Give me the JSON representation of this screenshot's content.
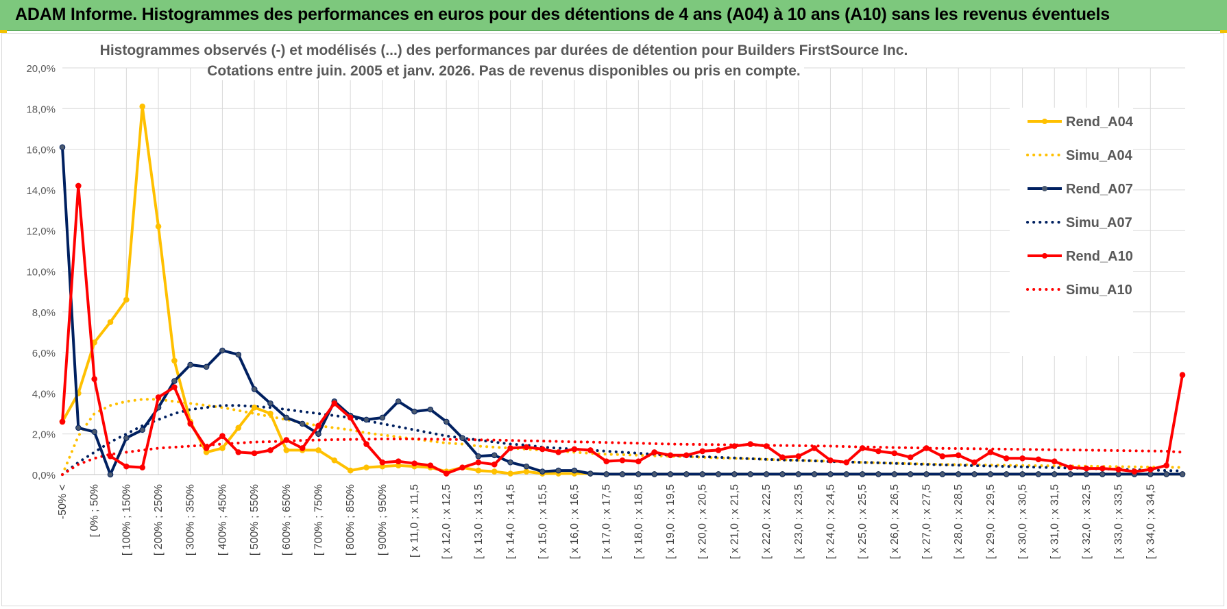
{
  "banner_title": "ADAM Informe. Histogrammes des performances en euros pour des détentions de 4 ans (A04) à 10 ans (A10) sans les revenus éventuels",
  "colors": {
    "banner_bg": "#7dc87d",
    "a04": "#ffc000",
    "a07": "#002060",
    "a10": "#ff0000",
    "grid": "#d9d9d9"
  },
  "chart_data": {
    "type": "line",
    "title_line1": "Histogrammes observés (-) et modélisés (...) des performances par durées de détention pour Builders FirstSource Inc.",
    "title_line2": "Cotations entre juin. 2005 et janv. 2026. Pas de revenus disponibles ou pris en compte.",
    "ylim": [
      0,
      20
    ],
    "yticks": [
      "0,0%",
      "2,0%",
      "4,0%",
      "6,0%",
      "8,0%",
      "10,0%",
      "12,0%",
      "14,0%",
      "16,0%",
      "18,0%",
      "20,0%"
    ],
    "grid": true,
    "legend_position": "right",
    "x_labels": [
      "-50% <",
      "[ 0% ; 50%",
      "[ 100% ; 150%",
      "[ 200% ; 250%",
      "[ 300% ; 350%",
      "[ 400% ; 450%",
      "[ 500% ; 550%",
      "[ 600% ; 650%",
      "[ 700% ; 750%",
      "[ 800% ; 850%",
      "[ 900% ; 950%",
      "[ x 11,0 ; x 11,5",
      "[ x 12,0 ; x 12,5",
      "[ x 13,0 ; x 13,5",
      "[ x 14,0 ; x 14,5",
      "[ x 15,0 ; x 15,5",
      "[ x 16,0 ; x 16,5",
      "[ x 17,0 ; x 17,5",
      "[ x 18,0 ; x 18,5",
      "[ x 19,0 ; x 19,5",
      "[ x 20,0 ; x 20,5",
      "[ x 21,0 ; x 21,5",
      "[ x 22,0 ; x 22,5",
      "[ x 23,0 ; x 23,5",
      "[ x 24,0 ; x 24,5",
      "[ x 25,0 ; x 25,5",
      "[ x 26,0 ; x 26,5",
      "[ x 27,0 ; x 27,5",
      "[ x 28,0 ; x 28,5",
      "[ x 29,0 ; x 29,5",
      "[ x 30,0 ; x 30,5",
      "[ x 31,0 ; x 31,5",
      "[ x 32,0 ; x 32,5",
      "[ x 33,0 ; x 33,5",
      "[ x 34,0 ; x 34,5"
    ],
    "n_points": 71,
    "series": [
      {
        "name": "Rend_A04",
        "style": "solid",
        "color": "#ffc000",
        "values": [
          2.6,
          4.0,
          6.5,
          7.5,
          8.6,
          18.1,
          12.2,
          5.6,
          2.6,
          1.1,
          1.3,
          2.3,
          3.3,
          3.0,
          1.2,
          1.2,
          1.2,
          0.7,
          0.2,
          0.35,
          0.4,
          0.45,
          0.4,
          0.35,
          0.15,
          0.35,
          0.2,
          0.15,
          0.05,
          0.15,
          0.05,
          0.05,
          0.05,
          0.05,
          0.02,
          0.02,
          0.02,
          0.02,
          0.02,
          0.02,
          0.02,
          0.02,
          0.02,
          0.02,
          0.02,
          0.02,
          0.02,
          0.02,
          0.02,
          0.02,
          0.02,
          0.02,
          0.02,
          0.02,
          0.02,
          0.02,
          0.02,
          0.02,
          0.02,
          0.02,
          0.02,
          0.02,
          0.02,
          0.02,
          0.02,
          0.02,
          0.02,
          0.02,
          0.02,
          0.02,
          0.02
        ]
      },
      {
        "name": "Simu_A04",
        "style": "dotted",
        "color": "#ffc000",
        "values": [
          0.0,
          1.9,
          3.0,
          3.4,
          3.6,
          3.7,
          3.7,
          3.6,
          3.5,
          3.4,
          3.3,
          3.15,
          3.0,
          2.85,
          2.7,
          2.55,
          2.4,
          2.3,
          2.2,
          2.05,
          1.95,
          1.85,
          1.75,
          1.65,
          1.55,
          1.5,
          1.4,
          1.35,
          1.3,
          1.25,
          1.2,
          1.15,
          1.1,
          1.05,
          1.0,
          0.98,
          0.95,
          0.92,
          0.9,
          0.88,
          0.85,
          0.82,
          0.8,
          0.78,
          0.75,
          0.73,
          0.7,
          0.68,
          0.65,
          0.63,
          0.6,
          0.58,
          0.56,
          0.54,
          0.52,
          0.5,
          0.49,
          0.48,
          0.47,
          0.46,
          0.45,
          0.44,
          0.43,
          0.42,
          0.41,
          0.4,
          0.39,
          0.38,
          0.37,
          0.36,
          0.35
        ]
      },
      {
        "name": "Rend_A07",
        "style": "solid",
        "color": "#002060",
        "values": [
          16.1,
          2.3,
          2.1,
          0.0,
          1.8,
          2.2,
          3.3,
          4.6,
          5.4,
          5.3,
          6.1,
          5.9,
          4.2,
          3.5,
          2.8,
          2.5,
          2.0,
          3.6,
          2.9,
          2.7,
          2.8,
          3.6,
          3.1,
          3.2,
          2.6,
          1.8,
          0.9,
          0.95,
          0.6,
          0.4,
          0.15,
          0.2,
          0.2,
          0.05,
          0.02,
          0.02,
          0.02,
          0.02,
          0.02,
          0.02,
          0.02,
          0.02,
          0.02,
          0.02,
          0.02,
          0.02,
          0.02,
          0.02,
          0.02,
          0.02,
          0.02,
          0.02,
          0.02,
          0.02,
          0.02,
          0.02,
          0.02,
          0.02,
          0.02,
          0.02,
          0.02,
          0.02,
          0.02,
          0.02,
          0.02,
          0.02,
          0.02,
          0.02,
          0.02,
          0.02,
          0.02
        ]
      },
      {
        "name": "Simu_A07",
        "style": "dotted",
        "color": "#002060",
        "values": [
          0.0,
          0.6,
          1.1,
          1.6,
          2.0,
          2.4,
          2.7,
          3.0,
          3.2,
          3.3,
          3.4,
          3.4,
          3.35,
          3.3,
          3.2,
          3.1,
          3.0,
          2.9,
          2.8,
          2.65,
          2.5,
          2.35,
          2.2,
          2.05,
          1.9,
          1.8,
          1.7,
          1.6,
          1.5,
          1.45,
          1.35,
          1.3,
          1.25,
          1.2,
          1.15,
          1.1,
          1.05,
          1.0,
          0.95,
          0.9,
          0.88,
          0.85,
          0.82,
          0.78,
          0.75,
          0.72,
          0.7,
          0.67,
          0.64,
          0.62,
          0.6,
          0.58,
          0.55,
          0.53,
          0.5,
          0.48,
          0.46,
          0.44,
          0.42,
          0.4,
          0.38,
          0.36,
          0.34,
          0.32,
          0.3,
          0.28,
          0.26,
          0.24,
          0.22,
          0.2,
          0.18
        ]
      },
      {
        "name": "Rend_A10",
        "style": "solid",
        "color": "#ff0000",
        "values": [
          2.6,
          14.2,
          4.7,
          0.9,
          0.4,
          0.35,
          3.8,
          4.3,
          2.5,
          1.3,
          1.9,
          1.1,
          1.05,
          1.2,
          1.7,
          1.3,
          2.4,
          3.5,
          2.8,
          1.5,
          0.6,
          0.65,
          0.55,
          0.45,
          0.05,
          0.35,
          0.6,
          0.5,
          1.3,
          1.35,
          1.25,
          1.1,
          1.25,
          1.2,
          0.65,
          0.7,
          0.65,
          1.1,
          0.95,
          0.95,
          1.15,
          1.2,
          1.4,
          1.5,
          1.4,
          0.85,
          0.9,
          1.3,
          0.7,
          0.6,
          1.3,
          1.15,
          1.05,
          0.85,
          1.3,
          0.9,
          0.95,
          0.6,
          1.1,
          0.8,
          0.8,
          0.75,
          0.65,
          0.35,
          0.3,
          0.3,
          0.25,
          0.15,
          0.25,
          0.45,
          4.9
        ]
      },
      {
        "name": "Simu_A10",
        "style": "dotted",
        "color": "#ff0000",
        "values": [
          0.0,
          0.5,
          0.8,
          1.0,
          1.1,
          1.2,
          1.3,
          1.35,
          1.4,
          1.45,
          1.5,
          1.55,
          1.6,
          1.62,
          1.65,
          1.68,
          1.7,
          1.72,
          1.73,
          1.74,
          1.75,
          1.75,
          1.75,
          1.74,
          1.73,
          1.72,
          1.71,
          1.7,
          1.68,
          1.66,
          1.65,
          1.63,
          1.61,
          1.6,
          1.58,
          1.56,
          1.54,
          1.52,
          1.5,
          1.49,
          1.48,
          1.47,
          1.46,
          1.45,
          1.44,
          1.43,
          1.42,
          1.41,
          1.4,
          1.38,
          1.36,
          1.35,
          1.33,
          1.32,
          1.3,
          1.29,
          1.28,
          1.27,
          1.26,
          1.25,
          1.24,
          1.23,
          1.22,
          1.21,
          1.2,
          1.19,
          1.18,
          1.17,
          1.16,
          1.15,
          1.1
        ]
      }
    ]
  }
}
